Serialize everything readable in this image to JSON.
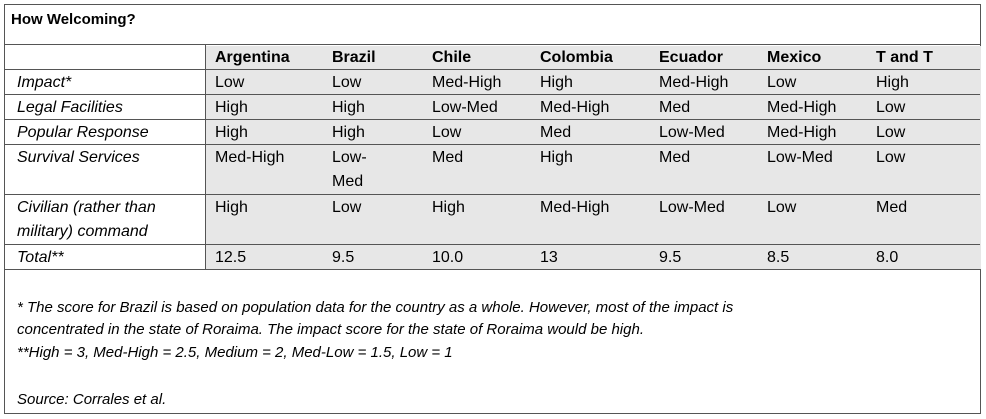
{
  "title": "How Welcoming?",
  "columns": [
    "Argentina",
    "Brazil",
    "Chile",
    "Colombia",
    "Ecuador",
    "Mexico",
    "T and T"
  ],
  "rows": [
    {
      "label": "Impact*",
      "values": [
        "Low",
        "Low",
        "Med-High",
        "High",
        "Med-High",
        "Low",
        "High"
      ]
    },
    {
      "label": "Legal Facilities",
      "values": [
        "High",
        "High",
        "Low-Med",
        "Med-High",
        "Med",
        "Med-High",
        "Low"
      ]
    },
    {
      "label": "Popular Response",
      "values": [
        "High",
        "High",
        "Low",
        "Med",
        "Low-Med",
        "Med-High",
        "Low"
      ]
    },
    {
      "label": "Survival Services",
      "values": [
        "Med-High",
        "Low-Med",
        "Med",
        "High",
        "Med",
        "Low-Med",
        "Low"
      ]
    },
    {
      "label": "Civilian (rather than military) command",
      "values": [
        "High",
        "Low",
        "High",
        "Med-High",
        "Low-Med",
        "Low",
        "Med"
      ]
    },
    {
      "label": "Total**",
      "values": [
        "12.5",
        "9.5",
        "10.0",
        "13",
        "9.5",
        "8.5",
        "8.0"
      ]
    }
  ],
  "notes": {
    "line1": "* The score for Brazil is based on population data for the country as a whole.  However, most of the impact is",
    "line2": "concentrated in the state of Roraima.  The impact score for the state of Roraima would be high.",
    "line3": "**High = 3, Med-High = 2.5, Medium = 2, Med-Low = 1.5, Low = 1",
    "source": "Source:  Corrales et al."
  }
}
